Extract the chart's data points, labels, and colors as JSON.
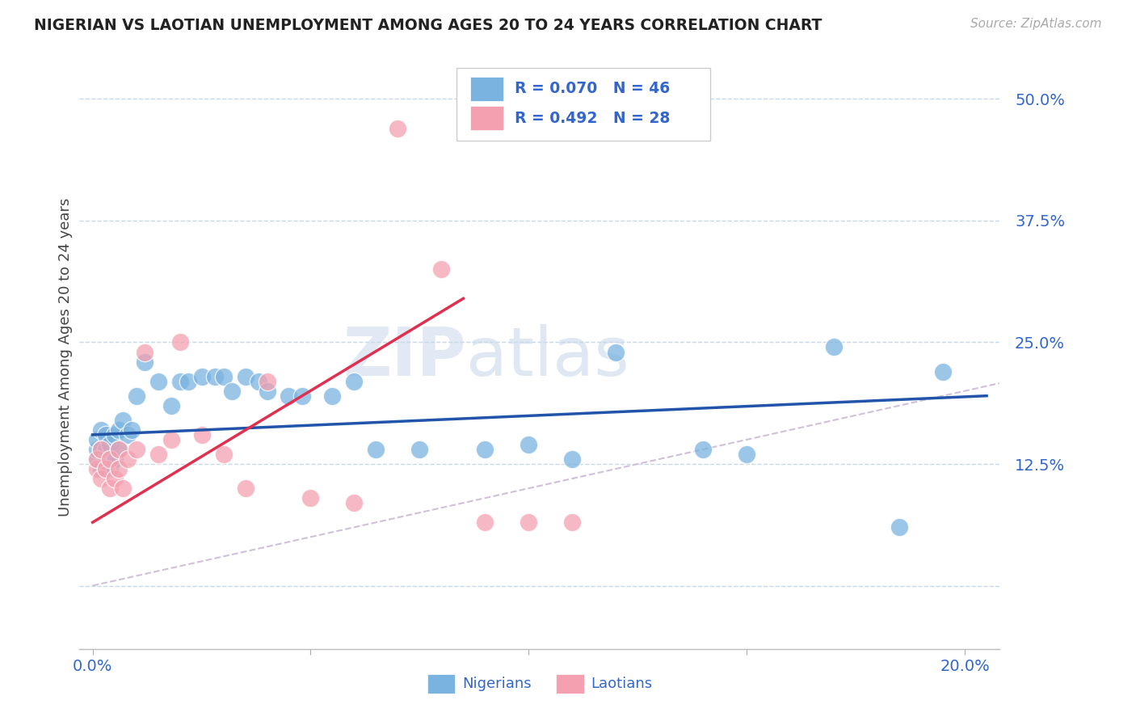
{
  "title": "NIGERIAN VS LAOTIAN UNEMPLOYMENT AMONG AGES 20 TO 24 YEARS CORRELATION CHART",
  "source": "Source: ZipAtlas.com",
  "ylabel": "Unemployment Among Ages 20 to 24 years",
  "yticks": [
    0.0,
    0.125,
    0.25,
    0.375,
    0.5
  ],
  "ytick_labels": [
    "",
    "12.5%",
    "25.0%",
    "37.5%",
    "50.0%"
  ],
  "xticks": [
    0.0,
    0.05,
    0.1,
    0.15,
    0.2
  ],
  "xtick_labels": [
    "0.0%",
    "",
    "",
    "",
    "20.0%"
  ],
  "xlim": [
    -0.003,
    0.208
  ],
  "ylim": [
    -0.065,
    0.535
  ],
  "nigerian_R": 0.07,
  "nigerian_N": 46,
  "laotian_R": 0.492,
  "laotian_N": 28,
  "nigerian_color": "#7ab3e0",
  "laotian_color": "#f4a0b0",
  "nigerian_line_color": "#2255aa",
  "laotian_line_color": "#e03050",
  "ref_line_color": "#d0c0d8",
  "watermark_zip": "ZIP",
  "watermark_atlas": "atlas",
  "background_color": "#ffffff",
  "grid_color": "#c8d8e8",
  "title_color": "#222222",
  "axis_color": "#3366cc",
  "legend_r_color": "#3366cc",
  "nigerian_x": [
    0.001,
    0.001,
    0.001,
    0.002,
    0.002,
    0.002,
    0.003,
    0.003,
    0.003,
    0.004,
    0.004,
    0.005,
    0.005,
    0.006,
    0.006,
    0.007,
    0.008,
    0.009,
    0.01,
    0.012,
    0.015,
    0.018,
    0.02,
    0.022,
    0.025,
    0.028,
    0.03,
    0.032,
    0.035,
    0.038,
    0.04,
    0.045,
    0.048,
    0.055,
    0.06,
    0.065,
    0.075,
    0.09,
    0.1,
    0.11,
    0.12,
    0.14,
    0.15,
    0.17,
    0.185,
    0.195
  ],
  "nigerian_y": [
    0.13,
    0.14,
    0.15,
    0.12,
    0.14,
    0.16,
    0.13,
    0.14,
    0.155,
    0.12,
    0.145,
    0.13,
    0.155,
    0.14,
    0.16,
    0.17,
    0.155,
    0.16,
    0.195,
    0.23,
    0.21,
    0.185,
    0.21,
    0.21,
    0.215,
    0.215,
    0.215,
    0.2,
    0.215,
    0.21,
    0.2,
    0.195,
    0.195,
    0.195,
    0.21,
    0.14,
    0.14,
    0.14,
    0.145,
    0.13,
    0.24,
    0.14,
    0.135,
    0.245,
    0.06,
    0.22
  ],
  "laotian_x": [
    0.001,
    0.001,
    0.002,
    0.002,
    0.003,
    0.004,
    0.004,
    0.005,
    0.006,
    0.006,
    0.007,
    0.008,
    0.01,
    0.012,
    0.015,
    0.018,
    0.02,
    0.025,
    0.03,
    0.035,
    0.04,
    0.05,
    0.06,
    0.07,
    0.08,
    0.09,
    0.1,
    0.11
  ],
  "laotian_y": [
    0.12,
    0.13,
    0.11,
    0.14,
    0.12,
    0.1,
    0.13,
    0.11,
    0.12,
    0.14,
    0.1,
    0.13,
    0.14,
    0.24,
    0.135,
    0.15,
    0.25,
    0.155,
    0.135,
    0.1,
    0.21,
    0.09,
    0.085,
    0.47,
    0.325,
    0.065,
    0.065,
    0.065
  ],
  "nigerian_line_x0": 0.0,
  "nigerian_line_y0": 0.155,
  "nigerian_line_x1": 0.205,
  "nigerian_line_y1": 0.195,
  "laotian_line_x0": 0.0,
  "laotian_line_y0": 0.065,
  "laotian_line_x1": 0.085,
  "laotian_line_y1": 0.295
}
